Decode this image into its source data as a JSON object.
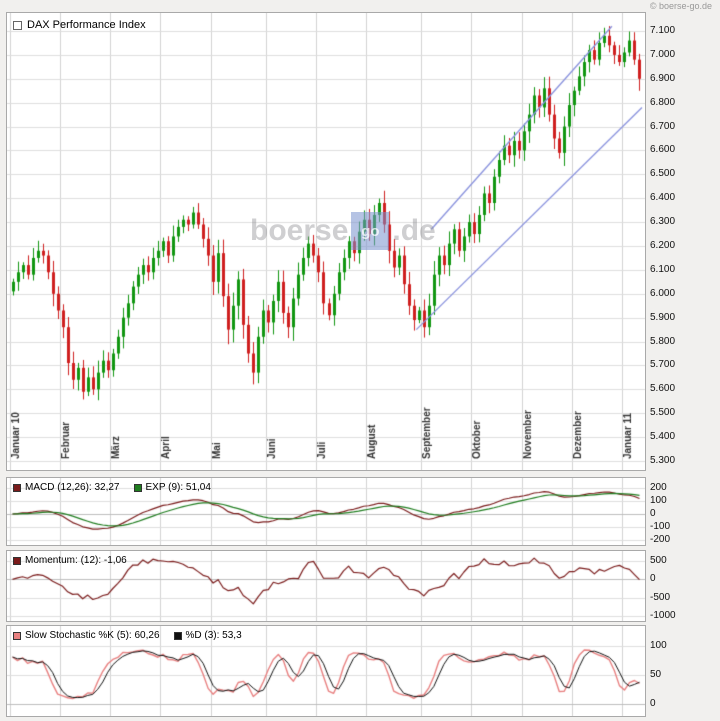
{
  "header": {
    "copyright": "© boerse-go.de"
  },
  "watermark": {
    "left": "boerse",
    "box": "go",
    "right": ".de"
  },
  "colors": {
    "up": "#119611",
    "down": "#cf1f1f",
    "channel": "#8891dd",
    "grid": "#dedede",
    "grid_strong": "#bcbcbc",
    "month_grid": "#d2d2d2",
    "macd": "#7a1b1b",
    "exp": "#1f7d1f",
    "momentum": "#7a1b1b",
    "stoch_k": "#e88080",
    "stoch_d": "#111111"
  },
  "main_panel": {
    "title": "DAX Performance Index"
  },
  "macd_panel": {
    "legend": [
      {
        "swatch": "#7a1b1b",
        "label": "MACD (12,26): 32,27"
      },
      {
        "swatch": "#1f7d1f",
        "label": "EXP (9): 51,04"
      }
    ]
  },
  "momentum_panel": {
    "legend": [
      {
        "swatch": "#7a1b1b",
        "label": "Momentum: (12): -1,06"
      }
    ]
  },
  "stochastic_panel": {
    "legend": [
      {
        "swatch": "#e88080",
        "label": "Slow Stochastic %K (5): 60,26"
      },
      {
        "swatch": "#111111",
        "label": "%D (3): 53,3"
      }
    ]
  },
  "chart_data": [
    {
      "name": "price",
      "type": "candlestick",
      "title": "DAX Performance Index",
      "ylim": [
        5300,
        7100
      ],
      "grid": true,
      "yticks": [
        {
          "value": 7100,
          "label": "7.100"
        },
        {
          "value": 7000,
          "label": "7.000"
        },
        {
          "value": 6900,
          "label": "6.900"
        },
        {
          "value": 6800,
          "label": "6.800"
        },
        {
          "value": 6700,
          "label": "6.700"
        },
        {
          "value": 6600,
          "label": "6.600"
        },
        {
          "value": 6500,
          "label": "6.500"
        },
        {
          "value": 6400,
          "label": "6.400"
        },
        {
          "value": 6300,
          "label": "6.300"
        },
        {
          "value": 6200,
          "label": "6.200"
        },
        {
          "value": 6100,
          "label": "6.100"
        },
        {
          "value": 6000,
          "label": "6.000"
        },
        {
          "value": 5900,
          "label": "5.900"
        },
        {
          "value": 5800,
          "label": "5.800"
        },
        {
          "value": 5700,
          "label": "5.700"
        },
        {
          "value": 5600,
          "label": "5.600"
        },
        {
          "value": 5500,
          "label": "5.500"
        },
        {
          "value": 5400,
          "label": "5.400"
        },
        {
          "value": 5300,
          "label": "5.300"
        }
      ],
      "months": [
        {
          "label": "Januar 10",
          "index": 0
        },
        {
          "label": "Februar",
          "index": 10
        },
        {
          "label": "März",
          "index": 20
        },
        {
          "label": "April",
          "index": 30
        },
        {
          "label": "Mai",
          "index": 40
        },
        {
          "label": "Juni",
          "index": 51
        },
        {
          "label": "Juli",
          "index": 61
        },
        {
          "label": "August",
          "index": 71
        },
        {
          "label": "September",
          "index": 82
        },
        {
          "label": "Oktober",
          "index": 92
        },
        {
          "label": "November",
          "index": 102
        },
        {
          "label": "Dezember",
          "index": 112
        },
        {
          "label": "Januar 11",
          "index": 122
        }
      ],
      "series_close": [
        6050,
        6090,
        6120,
        6080,
        6150,
        6180,
        6160,
        6090,
        6000,
        5930,
        5860,
        5710,
        5640,
        5690,
        5590,
        5650,
        5600,
        5670,
        5720,
        5680,
        5750,
        5820,
        5900,
        5960,
        6030,
        6080,
        6120,
        6090,
        6150,
        6180,
        6220,
        6160,
        6240,
        6280,
        6310,
        6290,
        6340,
        6290,
        6230,
        6160,
        6050,
        6170,
        5990,
        5850,
        5950,
        6060,
        5870,
        5750,
        5670,
        5820,
        5930,
        5880,
        5970,
        6050,
        5920,
        5860,
        5980,
        6080,
        6150,
        6210,
        6160,
        6090,
        5960,
        5910,
        6000,
        6090,
        6150,
        6220,
        6170,
        6260,
        6310,
        6250,
        6330,
        6380,
        6290,
        6180,
        6110,
        6160,
        6040,
        5950,
        5890,
        5930,
        5860,
        5950,
        6080,
        6160,
        6120,
        6210,
        6270,
        6180,
        6240,
        6300,
        6250,
        6330,
        6420,
        6380,
        6490,
        6560,
        6620,
        6580,
        6640,
        6600,
        6680,
        6750,
        6830,
        6780,
        6860,
        6750,
        6650,
        6590,
        6700,
        6790,
        6850,
        6910,
        6970,
        7020,
        6980,
        7050,
        7080,
        7040,
        7000,
        6970,
        7010,
        7060,
        6980,
        6900
      ],
      "channel": {
        "upper": {
          "from_index": 84,
          "from_price": 6270,
          "to_index": 120,
          "to_price": 7120
        },
        "lower": {
          "from_index": 81,
          "from_price": 5850,
          "to_index": 126,
          "to_price": 6780
        }
      }
    },
    {
      "name": "macd",
      "type": "line",
      "legend": [
        "MACD (12,26): 32,27",
        "EXP (9): 51,04"
      ],
      "current_macd": 32.27,
      "current_exp": 51.04,
      "params": {
        "fast": 12,
        "slow": 26,
        "signal": 9
      },
      "ylim": [
        -200,
        200
      ],
      "yticks": [
        {
          "value": 200,
          "label": "200"
        },
        {
          "value": 100,
          "label": "100"
        },
        {
          "value": 0,
          "label": "0"
        },
        {
          "value": -100,
          "label": "-100"
        },
        {
          "value": -200,
          "label": "-200"
        }
      ],
      "derived_from": "price.series_close"
    },
    {
      "name": "momentum",
      "type": "line",
      "legend": [
        "Momentum: (12): -1,06"
      ],
      "current": -1.06,
      "period": 12,
      "ylim": [
        -1000,
        500
      ],
      "yticks": [
        {
          "value": 500,
          "label": "500"
        },
        {
          "value": 0,
          "label": "0"
        },
        {
          "value": -500,
          "label": "-500"
        },
        {
          "value": -1000,
          "label": "-1000"
        }
      ],
      "derived_from": "price.series_close"
    },
    {
      "name": "stochastic",
      "type": "line",
      "legend": [
        "Slow Stochastic %K (5): 60,26",
        "%D (3): 53,3"
      ],
      "current_k": 60.26,
      "current_d": 53.3,
      "params": {
        "k": 5,
        "d": 3
      },
      "ylim": [
        0,
        100
      ],
      "yticks": [
        {
          "value": 100,
          "label": "100"
        },
        {
          "value": 50,
          "label": "50"
        },
        {
          "value": 0,
          "label": "0"
        }
      ],
      "derived_from": "price.series_close"
    }
  ]
}
